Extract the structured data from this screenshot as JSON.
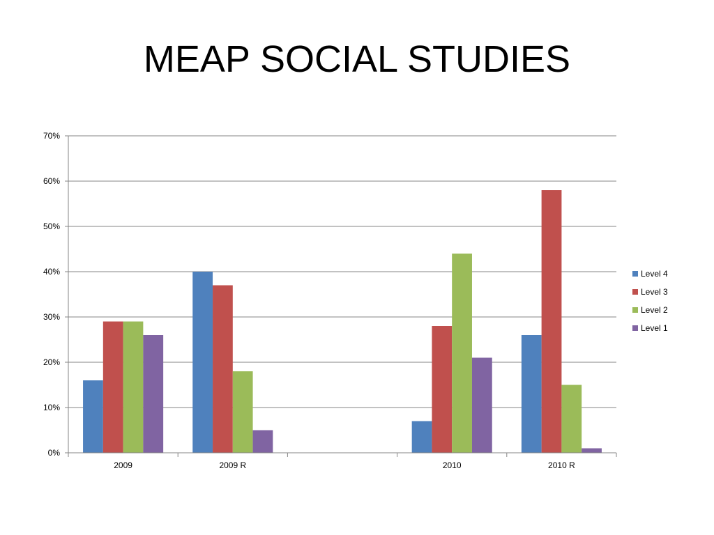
{
  "chart_data": {
    "type": "bar",
    "title": "MEAP SOCIAL STUDIES",
    "xlabel": "",
    "ylabel": "",
    "categories": [
      "2009",
      "2009 R",
      "",
      "2010",
      "2010 R"
    ],
    "series": [
      {
        "name": "Level 4",
        "color": "#4F81BD",
        "values": [
          16,
          40,
          null,
          7,
          26
        ]
      },
      {
        "name": "Level 3",
        "color": "#C0504D",
        "values": [
          29,
          37,
          null,
          28,
          58
        ]
      },
      {
        "name": "Level 2",
        "color": "#9BBB59",
        "values": [
          29,
          18,
          null,
          44,
          15
        ]
      },
      {
        "name": "Level 1",
        "color": "#8064A2",
        "values": [
          26,
          5,
          null,
          21,
          1
        ]
      }
    ],
    "ylim": [
      0,
      70
    ],
    "yticks": [
      "0%",
      "10%",
      "20%",
      "30%",
      "40%",
      "50%",
      "60%",
      "70%"
    ],
    "grid": true,
    "legend_position": "right"
  }
}
